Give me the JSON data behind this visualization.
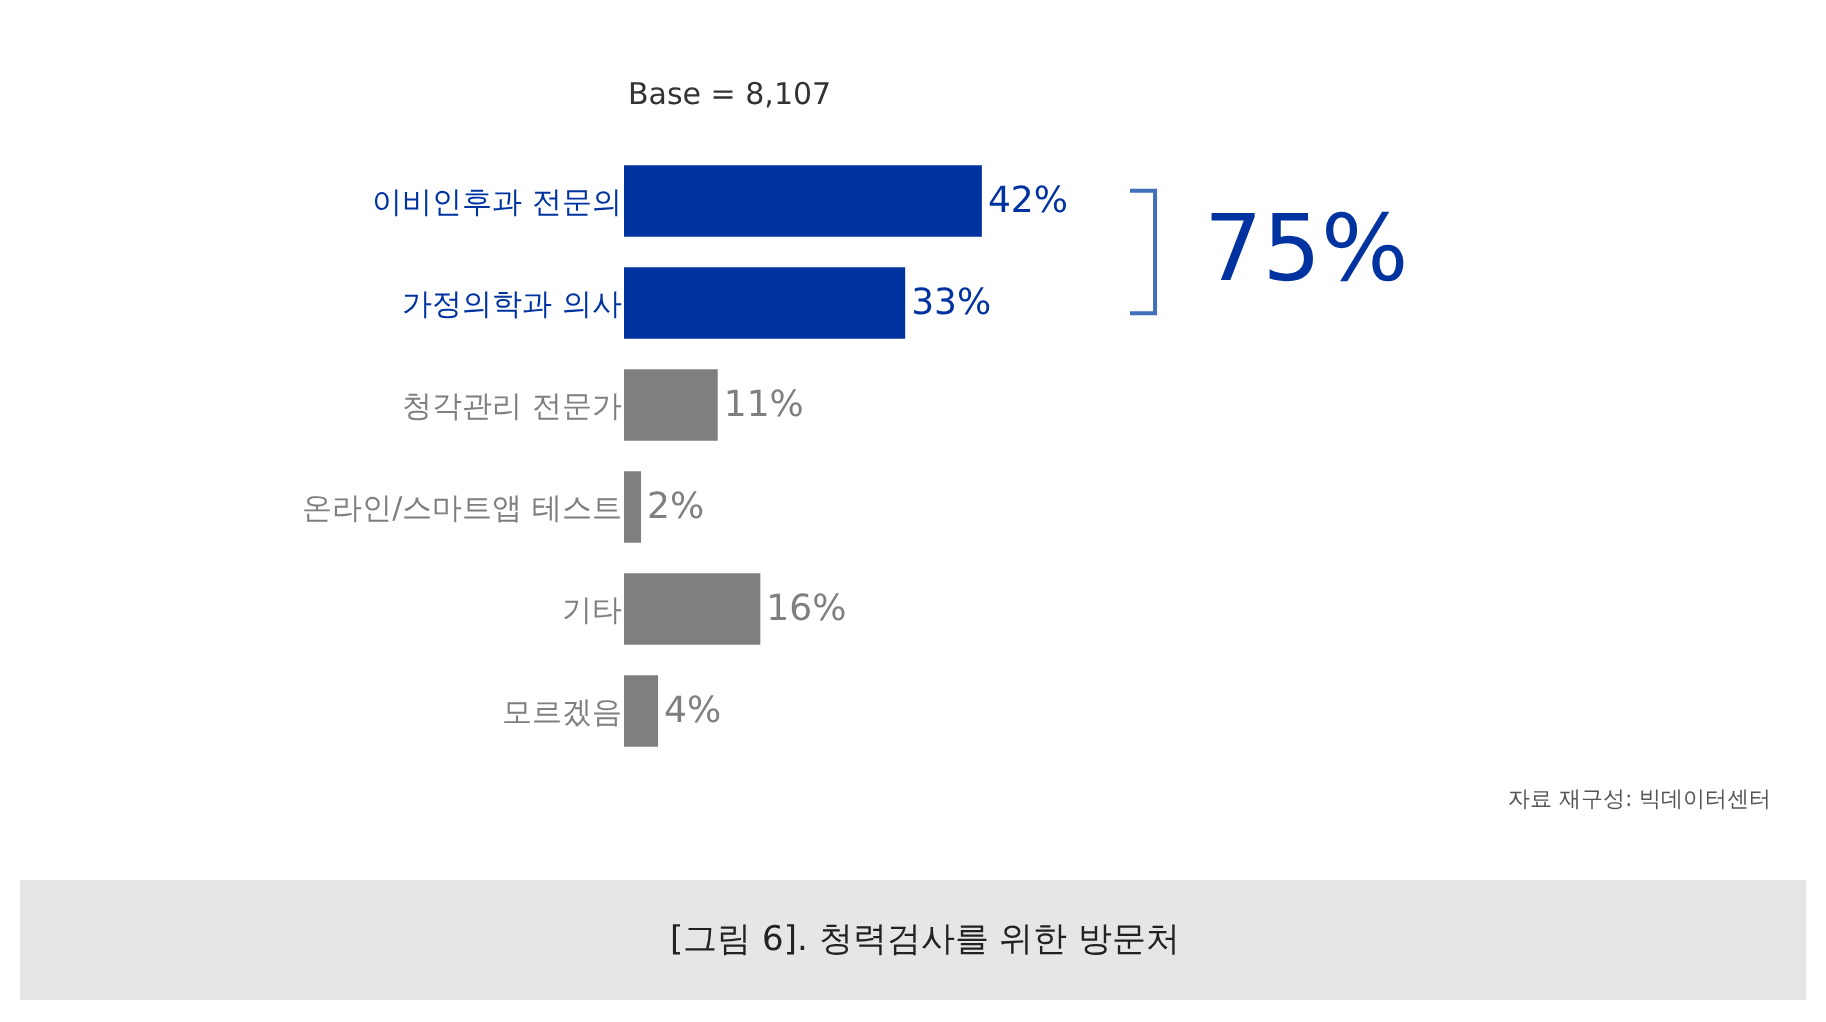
{
  "chart_data": {
    "type": "bar",
    "orientation": "horizontal",
    "categories": [
      "이비인후과 전문의",
      "가정의학과 의사",
      "청각관리 전문가",
      "온라인/스마트앱 테스트",
      "기타",
      "모르겠음"
    ],
    "values": [
      42,
      33,
      11,
      2,
      16,
      4
    ],
    "value_labels": [
      "42%",
      "33%",
      "11%",
      "2%",
      "16%",
      "4%"
    ],
    "colors": [
      "#0033a0",
      "#0033a0",
      "#7f7f7f",
      "#7f7f7f",
      "#7f7f7f",
      "#7f7f7f"
    ],
    "annotations": [
      "Base = 8,107",
      "75%",
      "자료 재구성: 빅데이터센터",
      "[그림 6]. 청력검사를 위한 방문처"
    ]
  }
}
